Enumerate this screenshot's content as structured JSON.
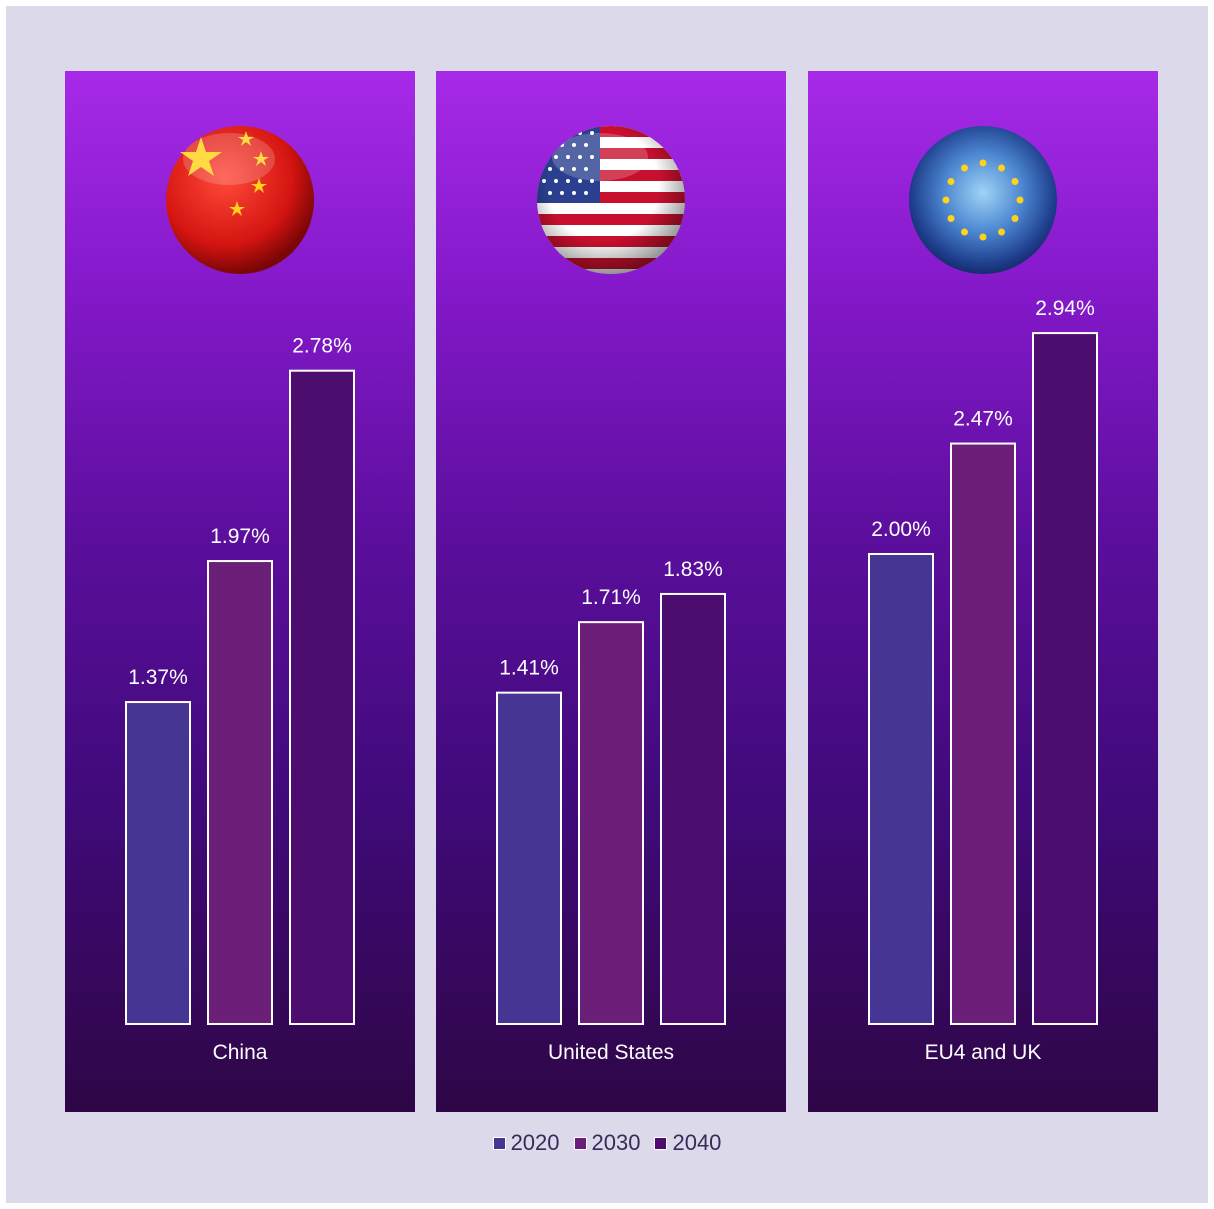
{
  "chart_data": {
    "type": "bar",
    "categories": [
      "China",
      "United States",
      "EU4 and UK"
    ],
    "series": [
      {
        "name": "2020",
        "values": [
          1.37,
          1.41,
          2.0
        ],
        "labels": [
          "1.37%",
          "1.41%",
          "2.00%"
        ],
        "color": "#463593"
      },
      {
        "name": "2030",
        "values": [
          1.97,
          1.71,
          2.47
        ],
        "labels": [
          "1.97%",
          "1.71%",
          "2.47%"
        ],
        "color": "#6b1f78"
      },
      {
        "name": "2040",
        "values": [
          2.78,
          1.83,
          2.94
        ],
        "labels": [
          "2.78%",
          "1.83%",
          "2.94%"
        ],
        "color": "#4c0d6e"
      }
    ],
    "ylim": [
      0,
      3.0
    ],
    "legend": "bottom-center",
    "grid": false
  },
  "flags": [
    "china-flag-icon",
    "us-flag-icon",
    "eu-flag-icon"
  ]
}
